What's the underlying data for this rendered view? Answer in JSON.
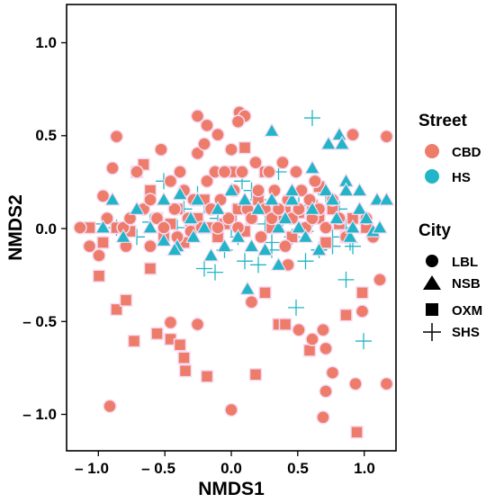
{
  "chart_data": {
    "type": "scatter",
    "title": "",
    "xlabel": "NMDS1",
    "ylabel": "NMDS2",
    "xlim": [
      -1.22,
      1.22
    ],
    "ylim": [
      -1.2,
      1.2
    ],
    "x_ticks": [
      -1.0,
      -0.5,
      0.0,
      0.5,
      1.0
    ],
    "y_ticks": [
      -1.0,
      -0.5,
      0.0,
      0.5,
      1.0
    ],
    "x_tick_labels": [
      "– 1.0",
      "– 0.5",
      "0.0",
      "0.5",
      "1.0"
    ],
    "y_tick_labels": [
      "– 1.0",
      "– 0.5",
      "0.0",
      "0.5",
      "1.0"
    ],
    "grid": false,
    "legend_placement": "right",
    "colors": {
      "CBD": "#ee7c6b",
      "HS": "#22b5c8"
    },
    "legends": [
      {
        "title": "Street",
        "entries": [
          {
            "label": "CBD",
            "shape": "circle"
          },
          {
            "label": "HS",
            "shape": "circle"
          }
        ]
      },
      {
        "title": "City",
        "entries": [
          {
            "label": "LBL",
            "shape": "circle"
          },
          {
            "label": "NSB",
            "shape": "triangle"
          },
          {
            "label": "OXM",
            "shape": "square"
          },
          {
            "label": "SHS",
            "shape": "plus"
          }
        ]
      }
    ],
    "series": [
      {
        "street": "HS",
        "city": "SHS",
        "points": [
          [
            -0.95,
            0.02
          ],
          [
            -0.85,
            0.0
          ],
          [
            -0.7,
            -0.05
          ],
          [
            -0.5,
            0.25
          ],
          [
            -0.35,
            0.1
          ],
          [
            -0.25,
            0.18
          ],
          [
            -0.1,
            0.05
          ],
          [
            -0.05,
            -0.12
          ],
          [
            0.0,
            0.0
          ],
          [
            0.05,
            -0.05
          ],
          [
            0.1,
            -0.18
          ],
          [
            0.15,
            0.2
          ],
          [
            0.2,
            0.15
          ],
          [
            0.25,
            0.02
          ],
          [
            0.3,
            -0.08
          ],
          [
            0.35,
            0.3
          ],
          [
            0.4,
            0.08
          ],
          [
            0.45,
            -0.05
          ],
          [
            0.5,
            0.12
          ],
          [
            0.55,
            -0.02
          ],
          [
            0.6,
            0.05
          ],
          [
            0.65,
            -0.12
          ],
          [
            0.7,
            0.18
          ],
          [
            0.75,
            -0.05
          ],
          [
            0.8,
            0.1
          ],
          [
            0.85,
            0.0
          ],
          [
            0.88,
            -0.08
          ],
          [
            0.92,
            0.05
          ],
          [
            -0.2,
            0.12
          ],
          [
            0.08,
            0.25
          ],
          [
            0.6,
            0.59
          ],
          [
            0.48,
            -0.43
          ],
          [
            -0.2,
            -0.22
          ],
          [
            -0.12,
            -0.24
          ],
          [
            0.2,
            -0.2
          ],
          [
            0.55,
            -0.18
          ],
          [
            0.75,
            -0.1
          ],
          [
            0.65,
            -0.12
          ],
          [
            0.85,
            -0.28
          ],
          [
            0.98,
            -0.61
          ],
          [
            0.38,
            0.05
          ],
          [
            -0.4,
            0.0
          ],
          [
            -0.6,
            0.03
          ],
          [
            0.3,
            -0.12
          ],
          [
            0.9,
            -0.1
          ]
        ]
      },
      {
        "street": "CBD",
        "city": "OXM",
        "points": [
          [
            -1.05,
            0.0
          ],
          [
            -0.95,
            -0.08
          ],
          [
            -0.85,
            0.0
          ],
          [
            -0.75,
            -0.02
          ],
          [
            -0.7,
            0.3
          ],
          [
            -0.6,
            0.2
          ],
          [
            -0.55,
            0.05
          ],
          [
            -0.5,
            -0.05
          ],
          [
            -0.45,
            0.02
          ],
          [
            -0.4,
            0.1
          ],
          [
            -0.35,
            -0.08
          ],
          [
            -0.3,
            0.0
          ],
          [
            -0.25,
            0.05
          ],
          [
            -0.2,
            0.15
          ],
          [
            -0.15,
            0.0
          ],
          [
            -0.1,
            -0.05
          ],
          [
            -0.05,
            0.02
          ],
          [
            0.0,
            0.05
          ],
          [
            0.05,
            0.1
          ],
          [
            0.1,
            -0.02
          ],
          [
            0.15,
            0.05
          ],
          [
            0.2,
            0.15
          ],
          [
            0.25,
            0.3
          ],
          [
            0.3,
            0.0
          ],
          [
            0.35,
            0.05
          ],
          [
            0.4,
            0.1
          ],
          [
            0.45,
            -0.05
          ],
          [
            0.5,
            0.08
          ],
          [
            0.55,
            0.0
          ],
          [
            0.6,
            0.12
          ],
          [
            0.65,
            0.05
          ],
          [
            0.7,
            -0.08
          ],
          [
            0.75,
            0.1
          ],
          [
            0.8,
            0.02
          ],
          [
            0.85,
            -0.05
          ],
          [
            0.9,
            0.05
          ],
          [
            1.0,
            0.0
          ],
          [
            -0.98,
            -0.26
          ],
          [
            -0.85,
            -0.44
          ],
          [
            -0.78,
            -0.39
          ],
          [
            -0.72,
            -0.61
          ],
          [
            -0.55,
            -0.57
          ],
          [
            -0.45,
            -0.6
          ],
          [
            -0.38,
            -0.63
          ],
          [
            -0.35,
            -0.7
          ],
          [
            -0.34,
            -0.77
          ],
          [
            -0.18,
            -0.8
          ],
          [
            0.18,
            -0.79
          ],
          [
            0.25,
            -0.35
          ],
          [
            0.35,
            -0.52
          ],
          [
            0.4,
            -0.52
          ],
          [
            0.58,
            -0.66
          ],
          [
            0.65,
            0.22
          ],
          [
            0.85,
            -0.47
          ],
          [
            0.97,
            -0.35
          ],
          [
            0.93,
            -1.1
          ],
          [
            0.1,
            0.43
          ],
          [
            -0.65,
            0.34
          ],
          [
            -0.6,
            -0.22
          ],
          [
            0.0,
            0.3
          ]
        ]
      },
      {
        "street": "CBD",
        "city": "LBL",
        "points": [
          [
            -1.12,
            0.0
          ],
          [
            -1.05,
            -0.1
          ],
          [
            -0.98,
            -0.15
          ],
          [
            -0.92,
            0.05
          ],
          [
            -0.88,
            0.32
          ],
          [
            -0.85,
            0.49
          ],
          [
            -0.8,
            0.0
          ],
          [
            -0.78,
            -0.1
          ],
          [
            -0.75,
            0.05
          ],
          [
            -0.7,
            0.3
          ],
          [
            -0.65,
            0.1
          ],
          [
            -0.6,
            0.15
          ],
          [
            -0.55,
            0.05
          ],
          [
            -0.52,
            0.42
          ],
          [
            -0.5,
            0.0
          ],
          [
            -0.45,
            0.25
          ],
          [
            -0.42,
            0.1
          ],
          [
            -0.4,
            -0.05
          ],
          [
            -0.38,
            0.3
          ],
          [
            -0.35,
            0.2
          ],
          [
            -0.32,
            0.05
          ],
          [
            -0.3,
            -0.02
          ],
          [
            -0.28,
            0.15
          ],
          [
            -0.25,
            0.4
          ],
          [
            -0.22,
            0.0
          ],
          [
            -0.2,
            0.45
          ],
          [
            -0.18,
            0.25
          ],
          [
            -0.15,
            0.1
          ],
          [
            -0.12,
            0.3
          ],
          [
            -0.1,
            0.0
          ],
          [
            -0.08,
            0.15
          ],
          [
            -0.05,
            0.3
          ],
          [
            -0.02,
            0.05
          ],
          [
            0.0,
            0.42
          ],
          [
            0.02,
            0.2
          ],
          [
            0.05,
            0.0
          ],
          [
            0.06,
            0.62
          ],
          [
            0.08,
            0.3
          ],
          [
            0.1,
            0.6
          ],
          [
            0.12,
            0.1
          ],
          [
            0.15,
            0.05
          ],
          [
            0.18,
            0.35
          ],
          [
            0.2,
            0.2
          ],
          [
            0.22,
            -0.05
          ],
          [
            0.25,
            0.1
          ],
          [
            0.28,
            0.3
          ],
          [
            0.3,
            0.05
          ],
          [
            0.32,
            0.2
          ],
          [
            0.35,
            0.1
          ],
          [
            0.38,
            0.35
          ],
          [
            0.4,
            -0.1
          ],
          [
            0.42,
            0.15
          ],
          [
            0.45,
            0.05
          ],
          [
            0.48,
            0.3
          ],
          [
            0.5,
            0.1
          ],
          [
            0.52,
            0.2
          ],
          [
            0.55,
            0.0
          ],
          [
            0.58,
            0.15
          ],
          [
            0.6,
            0.05
          ],
          [
            0.62,
            0.25
          ],
          [
            0.65,
            0.1
          ],
          [
            0.7,
            0.0
          ],
          [
            0.75,
            0.15
          ],
          [
            0.8,
            0.05
          ],
          [
            0.85,
            -0.05
          ],
          [
            0.9,
            0.5
          ],
          [
            1.0,
            0.05
          ],
          [
            1.05,
            -0.05
          ],
          [
            1.15,
            0.49
          ],
          [
            -0.95,
            0.17
          ],
          [
            -0.25,
            -0.52
          ],
          [
            -0.45,
            -0.51
          ],
          [
            -0.6,
            -0.1
          ],
          [
            -0.9,
            -0.96
          ],
          [
            0.0,
            -0.98
          ],
          [
            0.5,
            -0.55
          ],
          [
            0.6,
            -0.6
          ],
          [
            0.68,
            -0.55
          ],
          [
            0.68,
            -1.02
          ],
          [
            0.75,
            -0.78
          ],
          [
            0.7,
            -0.88
          ],
          [
            0.7,
            -0.65
          ],
          [
            0.92,
            -0.84
          ],
          [
            0.97,
            -0.45
          ],
          [
            1.1,
            -0.28
          ],
          [
            1.15,
            -0.84
          ],
          [
            0.15,
            -0.4
          ],
          [
            0.42,
            -0.2
          ],
          [
            -0.25,
            0.6
          ],
          [
            -0.18,
            0.55
          ],
          [
            -0.1,
            0.5
          ],
          [
            0.05,
            0.57
          ]
        ]
      },
      {
        "street": "HS",
        "city": "NSB",
        "points": [
          [
            -0.95,
            0.0
          ],
          [
            -0.88,
            0.15
          ],
          [
            -0.8,
            -0.05
          ],
          [
            -0.7,
            0.1
          ],
          [
            -0.6,
            0.0
          ],
          [
            -0.5,
            0.15
          ],
          [
            -0.4,
            -0.1
          ],
          [
            -0.3,
            0.05
          ],
          [
            -0.25,
            0.15
          ],
          [
            -0.2,
            0.0
          ],
          [
            -0.1,
            0.1
          ],
          [
            0.0,
            0.2
          ],
          [
            0.05,
            -0.05
          ],
          [
            0.1,
            0.15
          ],
          [
            0.15,
            -0.1
          ],
          [
            0.2,
            0.1
          ],
          [
            0.3,
            0.15
          ],
          [
            0.35,
            0.0
          ],
          [
            0.4,
            0.05
          ],
          [
            0.45,
            0.15
          ],
          [
            0.5,
            0.0
          ],
          [
            0.55,
            -0.05
          ],
          [
            0.6,
            0.1
          ],
          [
            0.65,
            -0.12
          ],
          [
            0.7,
            0.2
          ],
          [
            0.72,
            0.45
          ],
          [
            0.75,
            0.15
          ],
          [
            0.78,
            0.05
          ],
          [
            0.8,
            0.5
          ],
          [
            0.82,
            0.45
          ],
          [
            0.85,
            0.25
          ],
          [
            0.88,
            -0.05
          ],
          [
            0.9,
            0.0
          ],
          [
            0.95,
            0.1
          ],
          [
            1.0,
            0.05
          ],
          [
            1.05,
            -0.02
          ],
          [
            1.08,
            0.15
          ],
          [
            1.1,
            0.0
          ],
          [
            1.15,
            0.15
          ],
          [
            -0.5,
            -0.07
          ],
          [
            -0.42,
            -0.12
          ],
          [
            -0.38,
            0.18
          ],
          [
            -0.28,
            -0.05
          ],
          [
            0.12,
            -0.33
          ],
          [
            0.3,
            0.52
          ],
          [
            0.6,
            0.32
          ],
          [
            0.35,
            -0.2
          ],
          [
            -0.05,
            -0.1
          ],
          [
            0.25,
            -0.12
          ],
          [
            0.85,
            0.2
          ],
          [
            0.95,
            0.2
          ],
          [
            -0.15,
            -0.15
          ],
          [
            0.45,
            0.2
          ]
        ]
      }
    ]
  }
}
